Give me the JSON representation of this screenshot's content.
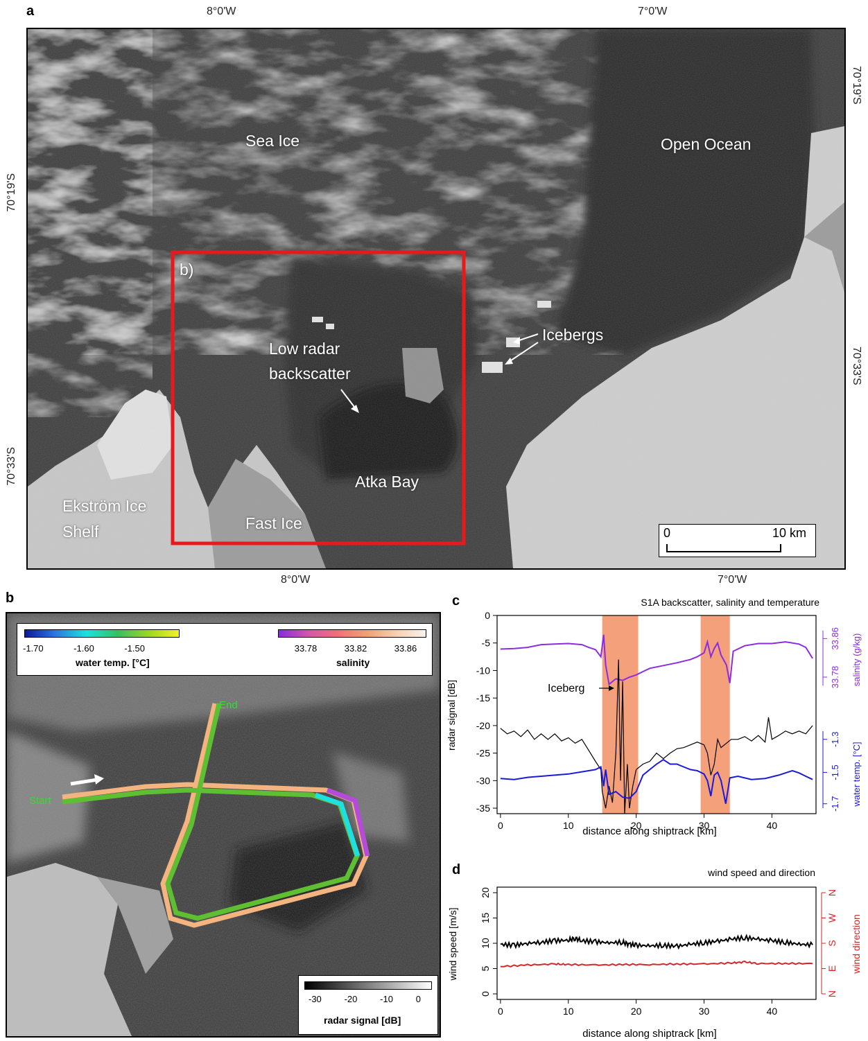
{
  "panel_a": {
    "letter": "a",
    "lon_labels": [
      "8°0'W",
      "7°0'W"
    ],
    "lat_labels": [
      "70°19'S",
      "70°33'S"
    ],
    "labels": {
      "sea_ice": "Sea Ice",
      "open_ocean": "Open Ocean",
      "icebergs": "Icebergs",
      "low_radar": "Low radar",
      "backscatter": "backscatter",
      "atka_bay": "Atka Bay",
      "ekstrom": "Ekström Ice",
      "shelf": "Shelf",
      "fast_ice": "Fast Ice",
      "inset_ref": "b)"
    },
    "scalebar": {
      "start": "0",
      "end": "10 km"
    },
    "colors": {
      "inset_box": "#e8191c"
    }
  },
  "panel_b": {
    "letter": "b",
    "start_label": "Start",
    "end_label": "End",
    "temp_legend": {
      "ticks": [
        "-1.70",
        "-1.60",
        "-1.50"
      ],
      "title": "water temp. [°C]"
    },
    "salinity_legend": {
      "ticks": [
        "33.78",
        "33.82",
        "33.86"
      ],
      "title": "salinity"
    },
    "radar_legend": {
      "ticks": [
        "-30",
        "-20",
        "-10",
        "0"
      ],
      "title": "radar signal [dB]"
    },
    "colors": {
      "label_green": "#33dd33"
    }
  },
  "panel_c": {
    "letter": "c",
    "chart_data": {
      "type": "line",
      "title": "S1A backscatter, salinity and temperature",
      "xlabel": "distance along shiptrack [km]",
      "ylabel": "radar signal [dB]",
      "ylabel_right_top": "salinity (g/kg)",
      "ylabel_right_bottom": "water temp. [°C]",
      "xlim": [
        0,
        46
      ],
      "ylim": [
        -36,
        0
      ],
      "x_ticks": [
        "0",
        "10",
        "20",
        "30",
        "40"
      ],
      "y_ticks": [
        "0",
        "-5",
        "-10",
        "-15",
        "-20",
        "-25",
        "-30",
        "-35"
      ],
      "salinity_ticks": [
        "33.78",
        "33.86"
      ],
      "temp_ticks": [
        "-1.7",
        "-1.5",
        "-1.3"
      ],
      "shaded_ranges": [
        [
          15,
          20.3
        ],
        [
          29.5,
          33.8
        ]
      ],
      "annotation": "Iceberg",
      "series": [
        {
          "name": "salinity",
          "color": "#8b2be2",
          "points": [
            [
              0,
              -6.1
            ],
            [
              2,
              -6
            ],
            [
              4,
              -5.8
            ],
            [
              6,
              -5.3
            ],
            [
              8,
              -5.2
            ],
            [
              10,
              -5.1
            ],
            [
              12,
              -5.3
            ],
            [
              13,
              -5.8
            ],
            [
              14,
              -6.2
            ],
            [
              14.8,
              -7.5
            ],
            [
              15.2,
              -3.5
            ],
            [
              15.5,
              -9
            ],
            [
              16,
              -12.5
            ],
            [
              17,
              -11.5
            ],
            [
              18,
              -11.8
            ],
            [
              19,
              -11.2
            ],
            [
              20,
              -10.8
            ],
            [
              21,
              -10.2
            ],
            [
              22,
              -9.6
            ],
            [
              24,
              -9.1
            ],
            [
              26,
              -8.6
            ],
            [
              28,
              -8
            ],
            [
              29,
              -7.5
            ],
            [
              30,
              -6.8
            ],
            [
              30.5,
              -4.8
            ],
            [
              31,
              -7.5
            ],
            [
              31.5,
              -6
            ],
            [
              32,
              -5
            ],
            [
              32.5,
              -7.2
            ],
            [
              33.3,
              -9
            ],
            [
              33.8,
              -12.3
            ],
            [
              34.3,
              -6.5
            ],
            [
              36,
              -5.5
            ],
            [
              38,
              -5.1
            ],
            [
              40,
              -5.1
            ],
            [
              42,
              -4.8
            ],
            [
              44,
              -5.2
            ],
            [
              45,
              -5.8
            ],
            [
              46,
              -7.8
            ]
          ]
        },
        {
          "name": "radar",
          "color": "#000000",
          "points": [
            [
              0,
              -20.5
            ],
            [
              1,
              -21.5
            ],
            [
              2,
              -21
            ],
            [
              3,
              -22
            ],
            [
              4,
              -20.8
            ],
            [
              5,
              -22.5
            ],
            [
              6,
              -21.5
            ],
            [
              7,
              -22.5
            ],
            [
              8,
              -21.5
            ],
            [
              9,
              -22.8
            ],
            [
              10,
              -22.2
            ],
            [
              11,
              -23.2
            ],
            [
              12,
              -22.5
            ],
            [
              13,
              -24.5
            ],
            [
              14,
              -26.5
            ],
            [
              14.8,
              -28
            ],
            [
              15,
              -32
            ],
            [
              15.5,
              -35
            ],
            [
              16,
              -31
            ],
            [
              16.5,
              -34
            ],
            [
              17,
              -25
            ],
            [
              17.4,
              -8
            ],
            [
              17.7,
              -30
            ],
            [
              18,
              -12
            ],
            [
              18.3,
              -36
            ],
            [
              18.7,
              -27
            ],
            [
              19,
              -35
            ],
            [
              19.5,
              -31
            ],
            [
              20,
              -28
            ],
            [
              21,
              -27
            ],
            [
              22,
              -26.5
            ],
            [
              23,
              -25
            ],
            [
              24,
              -26
            ],
            [
              25,
              -25
            ],
            [
              26,
              -24.2
            ],
            [
              27,
              -24
            ],
            [
              28,
              -23.5
            ],
            [
              29,
              -23
            ],
            [
              30,
              -23.5
            ],
            [
              30.5,
              -25
            ],
            [
              31,
              -29
            ],
            [
              31.5,
              -27
            ],
            [
              32,
              -22.5
            ],
            [
              32.5,
              -24
            ],
            [
              33,
              -23.5
            ],
            [
              34,
              -22.5
            ],
            [
              35,
              -22.5
            ],
            [
              36,
              -22
            ],
            [
              37,
              -22.8
            ],
            [
              38,
              -21.8
            ],
            [
              39,
              -23
            ],
            [
              39.5,
              -18.5
            ],
            [
              40,
              -22.5
            ],
            [
              41,
              -21.8
            ],
            [
              42,
              -21
            ],
            [
              43,
              -21.5
            ],
            [
              44,
              -21
            ],
            [
              45,
              -21.5
            ],
            [
              46,
              -20
            ]
          ]
        },
        {
          "name": "water temp.",
          "color": "#1a1adb",
          "points": [
            [
              0,
              -29.6
            ],
            [
              2,
              -29.8
            ],
            [
              4,
              -29.4
            ],
            [
              6,
              -29.2
            ],
            [
              8,
              -29
            ],
            [
              10,
              -28.8
            ],
            [
              12,
              -28.4
            ],
            [
              14,
              -28
            ],
            [
              14.8,
              -27.5
            ],
            [
              15.2,
              -31
            ],
            [
              15.5,
              -28
            ],
            [
              16,
              -32.5
            ],
            [
              17,
              -32
            ],
            [
              18,
              -33
            ],
            [
              19,
              -33.2
            ],
            [
              20,
              -32
            ],
            [
              21,
              -29
            ],
            [
              22,
              -28
            ],
            [
              23,
              -27
            ],
            [
              24,
              -26.2
            ],
            [
              25,
              -27
            ],
            [
              26,
              -27
            ],
            [
              27,
              -27.5
            ],
            [
              28,
              -28
            ],
            [
              29,
              -28.2
            ],
            [
              30,
              -28.8
            ],
            [
              30.5,
              -30
            ],
            [
              31,
              -32.8
            ],
            [
              31.5,
              -29
            ],
            [
              32,
              -28.5
            ],
            [
              32.5,
              -30
            ],
            [
              33.2,
              -34.2
            ],
            [
              33.8,
              -29.5
            ],
            [
              35,
              -29.2
            ],
            [
              37,
              -29.8
            ],
            [
              39,
              -29.6
            ],
            [
              41,
              -29
            ],
            [
              43,
              -28.2
            ],
            [
              44,
              -28.6
            ],
            [
              45,
              -29.2
            ],
            [
              46,
              -29.8
            ]
          ]
        }
      ]
    }
  },
  "panel_d": {
    "letter": "d",
    "chart_data": {
      "type": "line",
      "title": "wind speed and direction",
      "xlabel": "distance along shiptrack [km]",
      "ylabel": "wind speed [m/s]",
      "ylabel_right": "wind direction",
      "xlim": [
        0,
        46
      ],
      "ylim": [
        0,
        20
      ],
      "x_ticks": [
        "0",
        "10",
        "20",
        "30",
        "40"
      ],
      "y_ticks": [
        "0",
        "5",
        "10",
        "15",
        "20"
      ],
      "right_ticks": [
        "N",
        "E",
        "S",
        "W",
        "N"
      ],
      "series": [
        {
          "name": "wind speed",
          "color": "#000000",
          "points": [
            [
              0,
              9.8
            ],
            [
              2,
              9.6
            ],
            [
              4,
              10
            ],
            [
              6,
              10.2
            ],
            [
              8,
              10.5
            ],
            [
              10,
              10.6
            ],
            [
              11,
              11
            ],
            [
              12,
              10.5
            ],
            [
              14,
              10.3
            ],
            [
              16,
              10.1
            ],
            [
              18,
              10.2
            ],
            [
              19,
              9.8
            ],
            [
              20,
              9.6
            ],
            [
              22,
              9.5
            ],
            [
              24,
              9.6
            ],
            [
              26,
              9.4
            ],
            [
              28,
              9.8
            ],
            [
              30,
              10.1
            ],
            [
              32,
              10.4
            ],
            [
              34,
              10.8
            ],
            [
              36,
              11.1
            ],
            [
              38,
              10.8
            ],
            [
              40,
              10.5
            ],
            [
              42,
              10.2
            ],
            [
              44,
              9.8
            ],
            [
              46,
              9.7
            ]
          ]
        },
        {
          "name": "wind direction",
          "color": "#d62728",
          "points": [
            [
              0,
              5.4
            ],
            [
              4,
              5.7
            ],
            [
              8,
              5.9
            ],
            [
              10,
              5.8
            ],
            [
              14,
              5.7
            ],
            [
              18,
              5.8
            ],
            [
              22,
              5.8
            ],
            [
              26,
              5.9
            ],
            [
              30,
              5.9
            ],
            [
              34,
              6.1
            ],
            [
              36,
              6.3
            ],
            [
              38,
              6
            ],
            [
              42,
              6
            ],
            [
              46,
              6
            ]
          ]
        }
      ]
    }
  }
}
